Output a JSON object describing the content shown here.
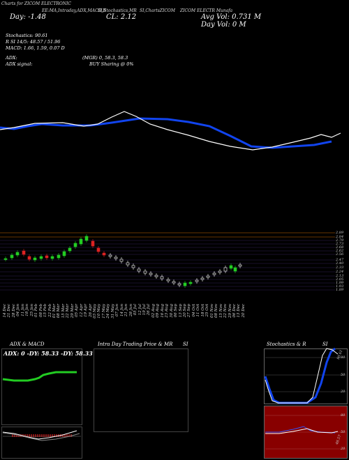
{
  "header": {
    "top_left": "Charts for ZICOM ELECTRONIC",
    "header_fragments": [
      "EE:MA,Intraday,ADX,MACD,B",
      "SI,Stochastics,MR",
      "SI,ChartsZICOM",
      "ZICOM ELECTR Munafa"
    ],
    "day_change": "Day: -1.48",
    "close": "CL: 2.12",
    "avg_vol": "Avg Vol: 0.731 M",
    "day_vol": "Day Vol: 0 M"
  },
  "indicators": {
    "stochastics": "Stochastics: 90.61",
    "rsi": "R    SI 14/5: 48.57 / 51.96",
    "macd": "MACD: 1.66,  1.59,  0.07 D",
    "adx": "ADX:",
    "adx_values": "(MGR) 0,  58.3,  58.3",
    "adx_signal": "ADX  signal:",
    "buy_signal": "BUY Sharing @ 0%"
  },
  "price_axis": [
    "2.89",
    "2.84",
    "2.79",
    "2.73",
    "2.68",
    "2.62",
    "2.56",
    "2.47",
    "2.40",
    "2.33",
    "2.24",
    "2.13",
    "2.05",
    "1.99",
    "1.93",
    "1.89"
  ],
  "dates": [
    "14 Dec",
    "21 Dec",
    "28 Dec",
    "04 Jan",
    "11 Jan",
    "18 Jan",
    "25 Jan",
    "01 Feb",
    "08 Feb",
    "15 Feb",
    "22 Feb",
    "01 Mar",
    "08 Mar",
    "15 Mar",
    "22 Mar",
    "29 Mar",
    "05 Apr",
    "12 Apr",
    "19 Apr",
    "26 Apr",
    "03 May",
    "10 May",
    "17 May",
    "24 May",
    "31 May",
    "07 Jun",
    "14 Jun",
    "21 Jun",
    "28 Jun",
    "05 Jul",
    "12 Jul",
    "19 Jul",
    "26 Jul",
    "02 Aug",
    "09 Aug",
    "16 Aug",
    "23 Aug",
    "30 Aug",
    "06 Sep",
    "13 Sep",
    "20 Sep",
    "27 Sep",
    "04 Oct",
    "11 Oct",
    "18 Oct",
    "25 Oct",
    "01 Nov",
    "08 Nov",
    "15 Nov",
    "22 Nov",
    "29 Nov",
    "06 Dec",
    "13 Dec",
    "20 Dec"
  ],
  "panels": {
    "adx_title": "ADX  & MACD",
    "adx_label": "ADX: 0  -DY: 58.33 -DY: 58.33",
    "intraday_title": "Intra  Day Trading Price  & MR",
    "intraday_si": "SI",
    "stoch_title": "Stochastics & R",
    "stoch_si": "SI",
    "stoch_top_label": "90.61",
    "stoch_levels": [
      "80",
      "50",
      "20"
    ],
    "rsi_levels": [
      "80",
      "50",
      "20"
    ],
    "rsi_label": "48.57"
  },
  "colors": {
    "bg": "#000000",
    "blue": "#1144ee",
    "white": "#ffffff",
    "green": "#22cc22",
    "red": "#dd2222",
    "orange": "#cc6600",
    "darkred": "#880000"
  }
}
